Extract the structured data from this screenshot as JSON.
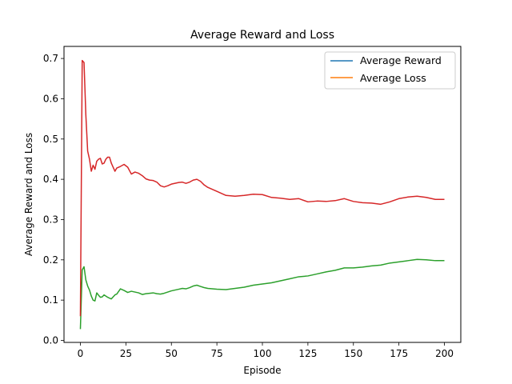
{
  "chart_data": {
    "type": "line",
    "title": "Average Reward and Loss",
    "xlabel": "Episode",
    "ylabel": "Average Reward and Loss",
    "xlim": [
      -9,
      209
    ],
    "ylim": [
      -0.005,
      0.73
    ],
    "xticks": [
      0,
      25,
      50,
      75,
      100,
      125,
      150,
      175,
      200
    ],
    "xtick_labels": [
      "0",
      "25",
      "50",
      "75",
      "100",
      "125",
      "150",
      "175",
      "200"
    ],
    "yticks": [
      0.0,
      0.1,
      0.2,
      0.3,
      0.4,
      0.5,
      0.6,
      0.7
    ],
    "ytick_labels": [
      "0.0",
      "0.1",
      "0.2",
      "0.3",
      "0.4",
      "0.5",
      "0.6",
      "0.7"
    ],
    "grid": false,
    "legend": {
      "location": "upper right",
      "entries": [
        {
          "label": "Average Reward",
          "color": "#1f77b4"
        },
        {
          "label": "Average Loss",
          "color": "#ff7f0e"
        }
      ]
    },
    "series": [
      {
        "color": "#2ca02c",
        "x": [
          0,
          1,
          2,
          3,
          4,
          5,
          6,
          7,
          8,
          9,
          10,
          11,
          12,
          13,
          14,
          15,
          16,
          17,
          18,
          19,
          20,
          22,
          24,
          26,
          28,
          30,
          32,
          34,
          36,
          38,
          40,
          42,
          44,
          46,
          48,
          50,
          52,
          54,
          56,
          58,
          60,
          62,
          64,
          66,
          68,
          70,
          75,
          80,
          85,
          90,
          95,
          100,
          105,
          110,
          115,
          120,
          125,
          130,
          135,
          140,
          145,
          150,
          155,
          160,
          165,
          170,
          175,
          180,
          185,
          190,
          195,
          200
        ],
        "y": [
          0.028,
          0.175,
          0.183,
          0.15,
          0.135,
          0.125,
          0.11,
          0.1,
          0.098,
          0.118,
          0.112,
          0.107,
          0.108,
          0.113,
          0.11,
          0.107,
          0.105,
          0.103,
          0.108,
          0.113,
          0.115,
          0.128,
          0.124,
          0.119,
          0.122,
          0.12,
          0.118,
          0.114,
          0.116,
          0.117,
          0.118,
          0.116,
          0.115,
          0.117,
          0.12,
          0.123,
          0.125,
          0.127,
          0.129,
          0.128,
          0.131,
          0.135,
          0.137,
          0.134,
          0.131,
          0.129,
          0.127,
          0.126,
          0.129,
          0.132,
          0.137,
          0.14,
          0.143,
          0.148,
          0.153,
          0.158,
          0.16,
          0.165,
          0.17,
          0.174,
          0.18,
          0.18,
          0.182,
          0.185,
          0.187,
          0.192,
          0.195,
          0.198,
          0.201,
          0.2,
          0.198,
          0.198
        ]
      },
      {
        "color": "#d62728",
        "x": [
          0,
          1,
          2,
          3,
          4,
          5,
          6,
          7,
          8,
          9,
          10,
          11,
          12,
          13,
          14,
          15,
          16,
          17,
          18,
          19,
          20,
          22,
          24,
          26,
          28,
          30,
          32,
          34,
          36,
          38,
          40,
          42,
          44,
          46,
          48,
          50,
          52,
          54,
          56,
          58,
          60,
          62,
          64,
          66,
          68,
          70,
          75,
          80,
          85,
          90,
          95,
          100,
          105,
          110,
          115,
          120,
          125,
          130,
          135,
          140,
          145,
          150,
          155,
          160,
          165,
          170,
          175,
          180,
          185,
          190,
          195,
          200
        ],
        "y": [
          0.06,
          0.695,
          0.69,
          0.56,
          0.47,
          0.45,
          0.42,
          0.435,
          0.425,
          0.445,
          0.45,
          0.452,
          0.438,
          0.44,
          0.45,
          0.455,
          0.455,
          0.44,
          0.43,
          0.42,
          0.428,
          0.432,
          0.437,
          0.43,
          0.413,
          0.418,
          0.415,
          0.409,
          0.401,
          0.398,
          0.397,
          0.393,
          0.384,
          0.381,
          0.384,
          0.388,
          0.39,
          0.392,
          0.393,
          0.39,
          0.393,
          0.398,
          0.4,
          0.395,
          0.386,
          0.38,
          0.37,
          0.36,
          0.358,
          0.36,
          0.363,
          0.362,
          0.355,
          0.353,
          0.35,
          0.352,
          0.344,
          0.346,
          0.345,
          0.347,
          0.352,
          0.345,
          0.342,
          0.341,
          0.338,
          0.344,
          0.352,
          0.356,
          0.358,
          0.355,
          0.35,
          0.35
        ]
      }
    ]
  }
}
